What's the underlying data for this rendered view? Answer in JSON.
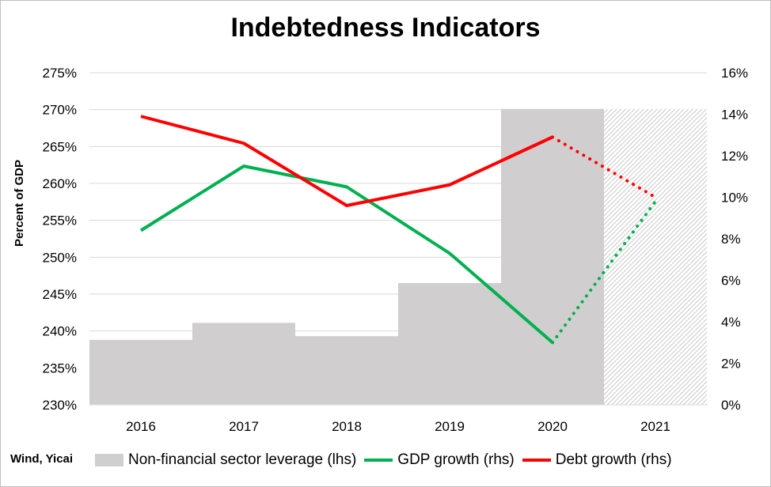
{
  "chart_data": {
    "type": "bar+line",
    "title": "Indebtedness Indicators",
    "ylabel": "Percent of GDP",
    "categories": [
      "2016",
      "2017",
      "2018",
      "2019",
      "2020",
      "2021"
    ],
    "left_axis": {
      "min": 230,
      "max": 275,
      "step": 5,
      "suffix": "%",
      "ticks": [
        "275%",
        "270%",
        "265%",
        "260%",
        "255%",
        "250%",
        "245%",
        "240%",
        "235%",
        "230%"
      ]
    },
    "right_axis": {
      "min": 0,
      "max": 16,
      "step": 2,
      "suffix": "%",
      "ticks": [
        "16%",
        "14%",
        "12%",
        "10%",
        "8%",
        "6%",
        "4%",
        "2%",
        "0%"
      ]
    },
    "grid": true,
    "series": [
      {
        "name": "Non-financial sector leverage (lhs)",
        "kind": "bar",
        "axis": "left",
        "color": "#d0cecf",
        "values": [
          238.8,
          241.1,
          239.3,
          246.5,
          270.1,
          null
        ],
        "forecast_hatched_category": "2021"
      },
      {
        "name": "GDP growth (rhs)",
        "kind": "line",
        "axis": "right",
        "color": "#00b050",
        "values": [
          8.4,
          11.5,
          10.5,
          7.3,
          3.0,
          9.8
        ],
        "dotted_from_index": 4
      },
      {
        "name": "Debt growth (rhs)",
        "kind": "line",
        "axis": "right",
        "color": "#ff0000",
        "values": [
          13.9,
          12.6,
          9.6,
          10.6,
          12.9,
          10.0
        ],
        "dotted_from_index": 4
      }
    ],
    "source": "Wind, Yicai",
    "legend_position": "bottom"
  }
}
